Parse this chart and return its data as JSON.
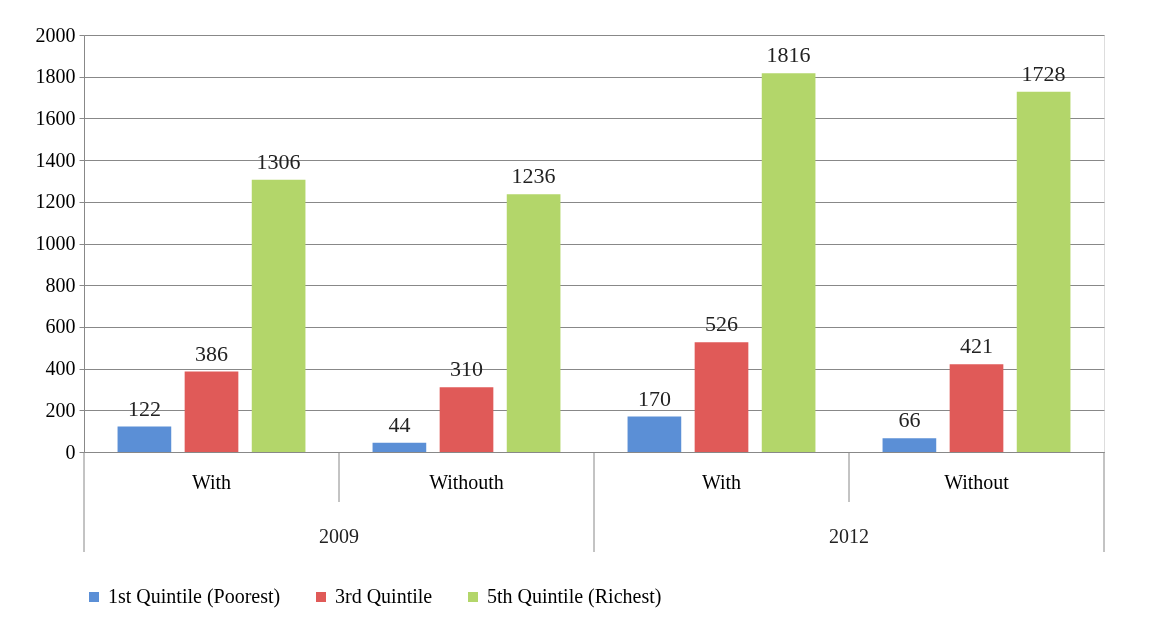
{
  "chart_data": {
    "type": "bar",
    "categories": [
      "With",
      "Withouth",
      "With",
      "Without"
    ],
    "annotations": [
      "2009",
      "2012"
    ],
    "series": [
      {
        "name": "1st Quintile (Poorest)",
        "color": "#5b8fd6",
        "values": [
          122,
          44,
          170,
          66
        ]
      },
      {
        "name": "3rd Quintile",
        "color": "#e05a58",
        "values": [
          386,
          310,
          526,
          421
        ]
      },
      {
        "name": "5th Quintile (Richest)",
        "color": "#b3d66a",
        "values": [
          1306,
          1236,
          1816,
          1728
        ]
      }
    ],
    "ylim": [
      0,
      2000
    ],
    "yticks": [
      0,
      200,
      400,
      600,
      800,
      1000,
      1200,
      1400,
      1600,
      1800,
      2000
    ],
    "grid": "y",
    "legend": "bottom",
    "data_labels": true
  }
}
